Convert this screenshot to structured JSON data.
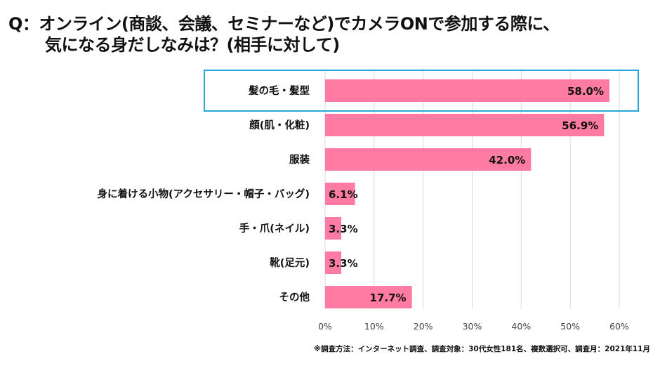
{
  "title_line1": "Q：オンライン(商談、会議、セミナーなど)でカメラONで参加する際に、",
  "title_line2": "気になる身だしなみは？(相手に対して)",
  "footnote": "※調査方法：インターネット調査、調査対象：30代女性181名、複数選択可、調査月：2021年11月",
  "colors": {
    "bar": "#FF7BA3",
    "highlight": "#29A8E0",
    "grid": "#D9D9D9"
  },
  "chart_data": {
    "type": "bar",
    "orientation": "horizontal",
    "categories": [
      "髪の毛・髪型",
      "顔(肌・化粧)",
      "服装",
      "身に着ける小物(アクセサリー・帽子・バッグ)",
      "手・爪(ネイル)",
      "靴(足元)",
      "その他"
    ],
    "values": [
      58.0,
      56.9,
      42.0,
      6.1,
      3.3,
      3.3,
      17.7
    ],
    "data_labels": [
      "58.0%",
      "56.9%",
      "42.0%",
      "6.1%",
      "3.3%",
      "3.3%",
      "17.7%"
    ],
    "xlim": [
      0,
      60
    ],
    "xticks": [
      "0%",
      "10%",
      "20%",
      "30%",
      "40%",
      "50%",
      "60%"
    ],
    "grid": true,
    "highlighted_category": "髪の毛・髪型"
  }
}
